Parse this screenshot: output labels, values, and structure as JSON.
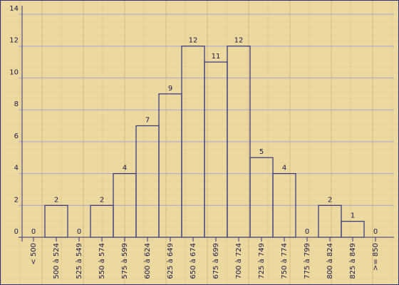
{
  "chart_data": {
    "type": "bar",
    "categories": [
      "< 500",
      "500 à 524",
      "525 à 549",
      "550 à 574",
      "575 à 599",
      "600 à 624",
      "625 à 649",
      "650 à 674",
      "675 à 699",
      "700 à 724",
      "725 à 749",
      "750 à 774",
      "775 à 799",
      "800 à 824",
      "825 à 849",
      ">= 850"
    ],
    "values": [
      0,
      2,
      0,
      2,
      4,
      7,
      9,
      12,
      11,
      12,
      5,
      4,
      0,
      2,
      1,
      0
    ],
    "color": "#33337a",
    "ylim": [
      0,
      14
    ],
    "yticks": [
      0,
      2,
      4,
      6,
      8,
      10,
      12,
      14
    ],
    "grid": true
  }
}
